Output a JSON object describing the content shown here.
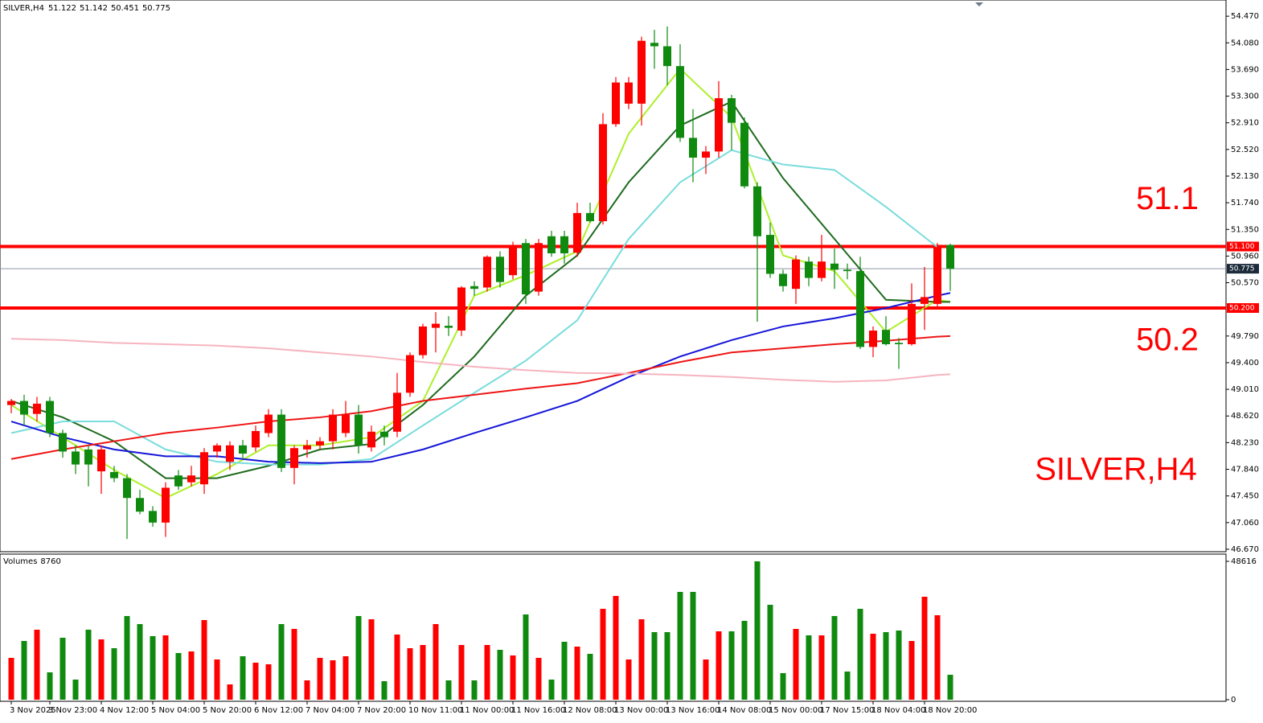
{
  "chart_data": {
    "type": "candlestick",
    "symbol": "SILVER,H4",
    "categories": [
      "3 Nov 2025",
      null,
      null,
      "3 Nov 23:00",
      null,
      null,
      null,
      "4 Nov 12:00",
      null,
      null,
      null,
      "5 Nov 04:00",
      null,
      null,
      null,
      "5 Nov 20:00",
      null,
      null,
      null,
      "6 Nov 12:00",
      null,
      null,
      null,
      "7 Nov 04:00",
      null,
      null,
      null,
      "7 Nov 20:00",
      null,
      null,
      null,
      "10 Nov 11:00",
      null,
      null,
      null,
      "11 Nov 00:00",
      null,
      null,
      null,
      "11 Nov 16:00",
      null,
      null,
      null,
      "12 Nov 08:00",
      null,
      null,
      null,
      "13 Nov 00:00",
      null,
      null,
      null,
      "13 Nov 16:00",
      null,
      null,
      null,
      "14 Nov 08:00",
      null,
      null,
      null,
      "15 Nov 00:00",
      null,
      null,
      null,
      "17 Nov 15:00",
      null,
      null,
      null,
      "18 Nov 04:00",
      null,
      null,
      null,
      "18 Nov 20:00",
      null,
      null
    ],
    "open": [
      48.78,
      48.84,
      48.65,
      48.84,
      48.37,
      48.1,
      48.13,
      47.81,
      47.8,
      47.71,
      47.42,
      47.23,
      47.06,
      47.75,
      47.65,
      47.62,
      48.1,
      47.95,
      48.19,
      48.16,
      48.37,
      48.64,
      47.86,
      48.13,
      48.19,
      48.25,
      48.37,
      48.64,
      48.16,
      48.39,
      48.39,
      48.96,
      49.51,
      49.91,
      49.94,
      49.87,
      50.52,
      50.5,
      50.95,
      50.68,
      51.15,
      50.44,
      51.25,
      51.25,
      51.01,
      51.59,
      51.47,
      52.89,
      53.19,
      53.19,
      54.08,
      54.03,
      53.74,
      52.69,
      52.4,
      52.49,
      53.27,
      52.91,
      51.98,
      51.27,
      50.7,
      50.48,
      50.88,
      50.64,
      50.85,
      50.76,
      50.74,
      49.63,
      49.88,
      49.69,
      49.67,
      50.26,
      50.26,
      51.122
    ],
    "high": [
      48.87,
      48.93,
      48.9,
      48.9,
      48.42,
      48.19,
      48.19,
      48.19,
      47.89,
      47.77,
      47.54,
      47.3,
      47.65,
      47.83,
      47.89,
      48.15,
      48.22,
      48.25,
      48.27,
      48.48,
      48.72,
      48.72,
      48.19,
      48.27,
      48.31,
      48.72,
      48.84,
      48.78,
      48.48,
      48.48,
      49.25,
      49.55,
      49.97,
      50.14,
      50.08,
      50.52,
      50.59,
      50.97,
      51.03,
      51.17,
      51.21,
      51.21,
      51.33,
      51.33,
      51.74,
      51.74,
      53.05,
      53.58,
      53.58,
      54.17,
      54.27,
      54.32,
      54.06,
      53.11,
      52.57,
      53.52,
      53.32,
      52.99,
      52.04,
      51.45,
      50.76,
      50.97,
      50.95,
      51.27,
      51.07,
      50.85,
      50.95,
      49.93,
      50.08,
      49.76,
      50.56,
      50.8,
      51.15,
      51.142
    ],
    "low": [
      48.66,
      48.48,
      48.54,
      48.31,
      48.01,
      47.77,
      47.59,
      47.48,
      47.65,
      46.82,
      47.18,
      47.0,
      46.85,
      47.54,
      47.59,
      47.48,
      48.01,
      47.83,
      47.99,
      48.1,
      48.31,
      47.8,
      47.62,
      48.01,
      48.13,
      48.13,
      48.31,
      48.07,
      48.1,
      48.19,
      48.31,
      48.9,
      49.46,
      49.55,
      49.79,
      49.79,
      50.38,
      50.44,
      50.5,
      50.62,
      50.26,
      50.38,
      50.95,
      50.85,
      50.95,
      51.45,
      51.42,
      52.85,
      53.11,
      52.87,
      53.7,
      53.46,
      52.63,
      52.04,
      52.16,
      52.4,
      52.51,
      51.95,
      50.0,
      50.64,
      50.44,
      50.26,
      50.52,
      50.59,
      50.48,
      50.62,
      49.6,
      49.48,
      49.65,
      49.31,
      49.65,
      49.88,
      50.2,
      50.451
    ],
    "close": [
      48.84,
      48.64,
      48.8,
      48.37,
      48.1,
      47.91,
      47.91,
      48.13,
      47.71,
      47.42,
      47.22,
      47.06,
      47.57,
      47.59,
      47.75,
      48.09,
      48.19,
      48.19,
      48.07,
      48.4,
      48.64,
      47.86,
      48.15,
      48.19,
      48.25,
      48.64,
      48.64,
      48.19,
      48.39,
      48.31,
      48.96,
      49.51,
      49.93,
      49.97,
      49.91,
      50.5,
      50.48,
      50.95,
      50.58,
      51.09,
      50.4,
      51.15,
      51.0,
      51.0,
      51.59,
      51.47,
      52.89,
      53.5,
      53.5,
      54.11,
      54.03,
      53.74,
      52.69,
      52.4,
      52.49,
      53.27,
      52.91,
      51.98,
      51.25,
      50.7,
      50.52,
      50.91,
      50.64,
      50.88,
      50.76,
      50.74,
      49.63,
      49.87,
      49.67,
      49.67,
      50.26,
      50.36,
      51.09,
      50.775
    ],
    "up_color": "#ff0000",
    "down_color": "#0f8a0f",
    "ylim": [
      46.634,
      54.707
    ],
    "yticks": [
      {
        "value": 54.47,
        "label": "54.470"
      },
      {
        "value": 54.08,
        "label": "54.080"
      },
      {
        "value": 53.69,
        "label": "53.690"
      },
      {
        "value": 53.3,
        "label": "53.300"
      },
      {
        "value": 52.91,
        "label": "52.910"
      },
      {
        "value": 52.52,
        "label": "52.520"
      },
      {
        "value": 52.13,
        "label": "52.130"
      },
      {
        "value": 51.74,
        "label": "51.740"
      },
      {
        "value": 51.35,
        "label": "51.350"
      },
      {
        "value": 50.96,
        "label": "50.960"
      },
      {
        "value": 50.57,
        "label": "50.570"
      },
      {
        "value": 49.79,
        "label": "49.790"
      },
      {
        "value": 49.4,
        "label": "49.400"
      },
      {
        "value": 49.01,
        "label": "49.010"
      },
      {
        "value": 48.62,
        "label": "48.620"
      },
      {
        "value": 48.23,
        "label": "48.230"
      },
      {
        "value": 47.84,
        "label": "47.840"
      },
      {
        "value": 47.45,
        "label": "47.450"
      },
      {
        "value": 47.06,
        "label": "47.060"
      },
      {
        "value": 46.67,
        "label": "46.670"
      }
    ],
    "lines": [
      {
        "color": "#adf02a",
        "x": [
          0,
          4,
          8,
          12,
          16,
          20,
          24,
          28,
          32,
          36,
          40,
          44,
          48,
          52,
          56,
          60,
          64,
          68,
          72,
          73
        ],
        "values": [
          48.78,
          48.31,
          47.83,
          47.42,
          47.77,
          48.19,
          48.19,
          48.31,
          48.84,
          50.38,
          50.68,
          51.03,
          52.75,
          53.7,
          52.99,
          50.97,
          50.74,
          49.85,
          50.32,
          50.29
        ]
      },
      {
        "color": "#1e6b1e",
        "x": [
          0,
          4,
          8,
          12,
          16,
          20,
          24,
          28,
          32,
          36,
          40,
          44,
          48,
          52,
          56,
          60,
          64,
          68,
          72,
          73
        ],
        "values": [
          48.84,
          48.6,
          48.25,
          47.71,
          47.71,
          47.89,
          48.13,
          48.21,
          48.78,
          49.49,
          50.38,
          50.97,
          52.04,
          52.87,
          53.22,
          52.1,
          51.21,
          50.32,
          50.29,
          50.29
        ]
      },
      {
        "color": "#7adcdc",
        "x": [
          0,
          4,
          8,
          12,
          16,
          20,
          24,
          28,
          32,
          36,
          40,
          44,
          48,
          52,
          56,
          60,
          64,
          68,
          72
        ],
        "values": [
          48.37,
          48.54,
          48.54,
          48.13,
          47.95,
          47.91,
          47.91,
          47.99,
          48.48,
          48.96,
          49.43,
          50.02,
          51.21,
          52.04,
          52.51,
          52.3,
          52.22,
          51.68,
          51.09
        ]
      },
      {
        "color": "#1515d8",
        "x": [
          0,
          4,
          8,
          12,
          16,
          20,
          24,
          28,
          32,
          36,
          40,
          44,
          48,
          52,
          56,
          60,
          64,
          68,
          72,
          73
        ],
        "values": [
          48.54,
          48.31,
          48.13,
          48.03,
          48.03,
          47.95,
          47.93,
          47.95,
          48.13,
          48.37,
          48.6,
          48.84,
          49.19,
          49.49,
          49.73,
          49.93,
          50.05,
          50.2,
          50.38,
          50.42
        ]
      },
      {
        "color": "#ee1515",
        "x": [
          0,
          4,
          8,
          12,
          16,
          20,
          24,
          28,
          32,
          36,
          40,
          44,
          48,
          52,
          56,
          60,
          64,
          68,
          72,
          73
        ],
        "values": [
          47.99,
          48.13,
          48.25,
          48.37,
          48.45,
          48.54,
          48.6,
          48.69,
          48.84,
          48.93,
          49.02,
          49.1,
          49.25,
          49.41,
          49.55,
          49.61,
          49.67,
          49.72,
          49.78,
          49.79
        ]
      },
      {
        "color": "#f6b4c0",
        "x": [
          0,
          4,
          8,
          12,
          16,
          20,
          24,
          28,
          32,
          36,
          40,
          44,
          48,
          52,
          56,
          60,
          64,
          68,
          72,
          73
        ],
        "values": [
          49.75,
          49.73,
          49.69,
          49.67,
          49.65,
          49.61,
          49.55,
          49.49,
          49.41,
          49.34,
          49.29,
          49.25,
          49.24,
          49.22,
          49.19,
          49.15,
          49.12,
          49.14,
          49.22,
          49.23
        ]
      }
    ],
    "levels": [
      {
        "value": 51.1,
        "label": "51.100"
      },
      {
        "value": 50.2,
        "label": "50.200"
      }
    ],
    "level_color": "#ff0000",
    "volume": {
      "title": "Volumes",
      "values": [
        14698,
        20633,
        24591,
        9610,
        21764,
        7066,
        24591,
        21199,
        18090,
        29396,
        26569,
        22329,
        22612,
        16394,
        16959,
        27982,
        14133,
        5370,
        15263,
        13002,
        12437,
        26569,
        24873,
        6784,
        14698,
        13850,
        15263,
        29396,
        28265,
        6501,
        22895,
        18090,
        19220,
        26569,
        6784,
        19220,
        6784,
        19220,
        17524,
        15546,
        29961,
        14698,
        7066,
        20351,
        18655,
        16111,
        31939,
        36462,
        14133,
        28265,
        23743,
        23743,
        37875,
        37875,
        14133,
        24025,
        24025,
        27700,
        48616,
        33353,
        9327,
        24873,
        22612,
        22612,
        29396,
        9893,
        31939,
        23177,
        23743,
        24308,
        20633,
        36179,
        29678,
        8760
      ],
      "ylim": [
        0,
        48616
      ],
      "yticks": [
        0,
        48616
      ]
    }
  }
}
